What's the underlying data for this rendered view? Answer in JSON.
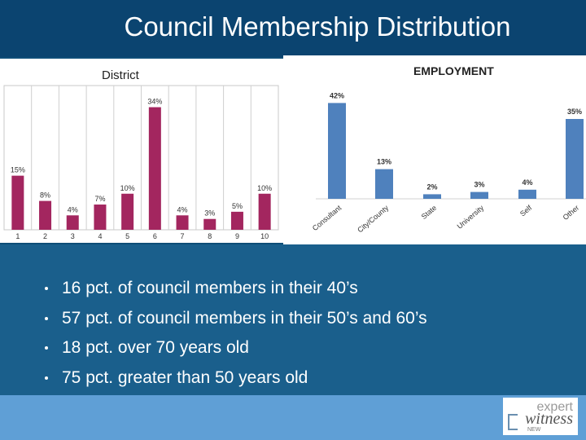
{
  "title": "Council Membership Distribution",
  "bullets": [
    "16 pct. of council members in their 40’s",
    "57 pct. of council members in their 50’s and 60’s",
    "18 pct. over 70 years old",
    "75 pct. greater than 50 years old"
  ],
  "logo": {
    "top": "expert",
    "bottom": "witness",
    "small": "NEW"
  },
  "colors": {
    "district_bar": "#a3265f",
    "employment_bar": "#4f81bd",
    "slide_bg": "#0f4e78",
    "bottom_band": "#5f9fd6"
  },
  "chart_data": [
    {
      "type": "bar",
      "title": "District",
      "categories": [
        "1",
        "2",
        "3",
        "4",
        "5",
        "6",
        "7",
        "8",
        "9",
        "10"
      ],
      "values": [
        15,
        8,
        4,
        7,
        10,
        34,
        4,
        3,
        5,
        10
      ],
      "data_labels": [
        "15%",
        "8%",
        "4%",
        "7%",
        "10%",
        "34%",
        "4%",
        "3%",
        "5%",
        "10%"
      ],
      "ylim": [
        0,
        40
      ],
      "grid": true,
      "legend": "none"
    },
    {
      "type": "bar",
      "title": "EMPLOYMENT",
      "categories": [
        "Consultant",
        "City/County",
        "State",
        "University",
        "Self",
        "Other"
      ],
      "values": [
        42,
        13,
        2,
        3,
        4,
        35
      ],
      "data_labels": [
        "42%",
        "13%",
        "2%",
        "3%",
        "4%",
        "35%"
      ],
      "ylim": [
        0,
        45
      ],
      "grid": false,
      "legend": "none"
    }
  ]
}
